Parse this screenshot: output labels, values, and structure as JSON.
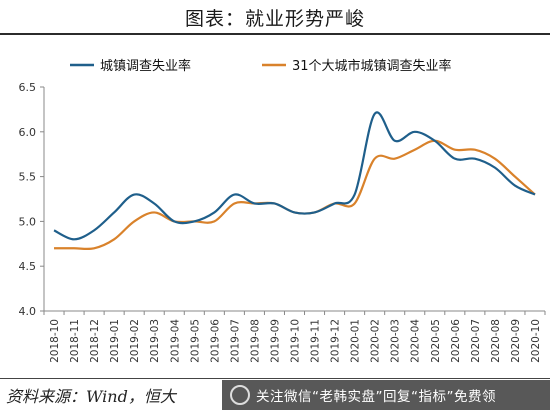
{
  "page": {
    "title": "图表：就业形势严峻"
  },
  "source": "资料来源：Wind，恒大",
  "watermark": {
    "text": "关注微信“老韩实盘”回复“指标”免费领"
  },
  "colors": {
    "series1": "#1f5f8b",
    "series2": "#d9822b",
    "axis": "#888888",
    "text": "#333333"
  },
  "chart_data": {
    "type": "line",
    "title": "",
    "xlabel": "",
    "ylabel": "",
    "ylim": [
      4.0,
      6.5
    ],
    "yticks": [
      "4.0",
      "4.5",
      "5.0",
      "5.5",
      "6.0",
      "6.5"
    ],
    "grid": false,
    "legend": "top",
    "categories": [
      "2018-10",
      "2018-11",
      "2018-12",
      "2019-01",
      "2019-02",
      "2019-03",
      "2019-04",
      "2019-05",
      "2019-06",
      "2019-07",
      "2019-08",
      "2019-09",
      "2019-10",
      "2019-11",
      "2019-12",
      "2020-01",
      "2020-02",
      "2020-03",
      "2020-04",
      "2020-05",
      "2020-06",
      "2020-07",
      "2020-08",
      "2020-09",
      "2020-10"
    ],
    "series": [
      {
        "name": "城镇调查失业率",
        "color": "#1f5f8b",
        "values": [
          4.9,
          4.8,
          4.9,
          5.1,
          5.3,
          5.2,
          5.0,
          5.0,
          5.1,
          5.3,
          5.2,
          5.2,
          5.1,
          5.1,
          5.2,
          5.3,
          6.2,
          5.9,
          6.0,
          5.9,
          5.7,
          5.7,
          5.6,
          5.4,
          5.3
        ]
      },
      {
        "name": "31个大城市城镇调查失业率",
        "color": "#d9822b",
        "values": [
          4.7,
          4.7,
          4.7,
          4.8,
          5.0,
          5.1,
          5.0,
          5.0,
          5.0,
          5.2,
          5.2,
          5.2,
          5.1,
          5.1,
          5.2,
          5.2,
          5.7,
          5.7,
          5.8,
          5.9,
          5.8,
          5.8,
          5.7,
          5.5,
          5.3
        ]
      }
    ]
  }
}
